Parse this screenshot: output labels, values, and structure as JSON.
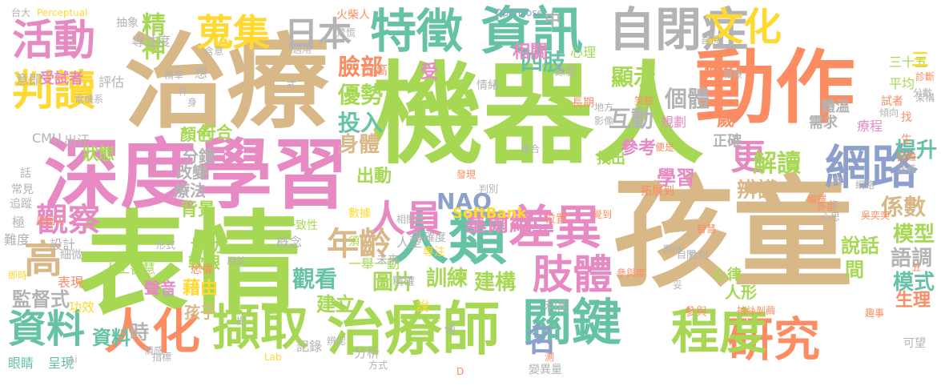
{
  "cloud": {
    "words": [
      {
        "text": "孩童",
        "color": "#d9b888"
      },
      {
        "text": "表情",
        "color": "#a6d854"
      },
      {
        "text": "機器人",
        "color": "#a6d854"
      },
      {
        "text": "治療",
        "color": "#d9b888"
      },
      {
        "text": "動作",
        "color": "#fc8d62"
      },
      {
        "text": "深度學習",
        "color": "#e78ac3"
      },
      {
        "text": "治療師",
        "color": "#a6d854"
      },
      {
        "text": "關鍵",
        "color": "#66c2a5"
      },
      {
        "text": "人類",
        "color": "#66c2a5"
      },
      {
        "text": "特徵",
        "color": "#66c2a5"
      },
      {
        "text": "資訊",
        "color": "#66c2a5"
      },
      {
        "text": "自閉症",
        "color": "#b3b3b3"
      },
      {
        "text": "研究",
        "color": "#fc8d62"
      },
      {
        "text": "程度",
        "color": "#a6d854"
      },
      {
        "text": "擷取",
        "color": "#a6d854"
      },
      {
        "text": "差異",
        "color": "#e78ac3"
      },
      {
        "text": "網路",
        "color": "#8da0cb"
      },
      {
        "text": "肢體",
        "color": "#e78ac3"
      },
      {
        "text": "人化",
        "color": "#fc8d62"
      },
      {
        "text": "活動",
        "color": "#e78ac3"
      },
      {
        "text": "判讀",
        "color": "#ffd92f"
      },
      {
        "text": "蒐集",
        "color": "#ffd92f"
      },
      {
        "text": "文化",
        "color": "#ffd92f"
      },
      {
        "text": "資料",
        "color": "#66c2a5"
      },
      {
        "text": "日本",
        "color": "#b3b3b3"
      },
      {
        "text": "人員",
        "color": "#e78ac3"
      },
      {
        "text": "年齡",
        "color": "#d9b888"
      },
      {
        "text": "更",
        "color": "#e78ac3"
      },
      {
        "text": "高",
        "color": "#d9b888"
      },
      {
        "text": "觀察",
        "color": "#e78ac3"
      },
      {
        "text": "名",
        "color": "#8da0cb"
      },
      {
        "text": "NAO",
        "color": "#8da0cb"
      },
      {
        "text": "塞爾維亞",
        "color": "#e78ac3"
      },
      {
        "text": "精神",
        "color": "#a6d854"
      },
      {
        "text": "優勢",
        "color": "#a6d854"
      },
      {
        "text": "投入",
        "color": "#66c2a5"
      },
      {
        "text": "身體",
        "color": "#d9b888"
      },
      {
        "text": "四肢",
        "color": "#66c2a5"
      },
      {
        "text": "臉部",
        "color": "#fc8d62"
      },
      {
        "text": "顯示",
        "color": "#a6d854"
      },
      {
        "text": "互動",
        "color": "#b3b3b3"
      },
      {
        "text": "個體",
        "color": "#b3b3b3"
      },
      {
        "text": "解讀",
        "color": "#a6d854"
      },
      {
        "text": "辨識",
        "color": "#d9b888"
      },
      {
        "text": "係數",
        "color": "#d9b888"
      },
      {
        "text": "模型",
        "color": "#a6d854"
      },
      {
        "text": "語調",
        "color": "#b3b3b3"
      },
      {
        "text": "模式",
        "color": "#66c2a5"
      },
      {
        "text": "生理",
        "color": "#fc8d62"
      },
      {
        "text": "提升",
        "color": "#66c2a5"
      },
      {
        "text": "觀看",
        "color": "#66c2a5"
      },
      {
        "text": "圖片",
        "color": "#a6d854"
      },
      {
        "text": "訓練",
        "color": "#a6d854"
      },
      {
        "text": "建構",
        "color": "#a6d854"
      },
      {
        "text": "建立",
        "color": "#a6d854"
      },
      {
        "text": "學習",
        "color": "#e78ac3"
      },
      {
        "text": "說話",
        "color": "#a6d854"
      },
      {
        "text": "間",
        "color": "#a6d854"
      },
      {
        "text": "人形",
        "color": "#a6d854"
      },
      {
        "text": "心律",
        "color": "#a6d854"
      },
      {
        "text": "監督式",
        "color": "#b3b3b3"
      },
      {
        "text": "孩子",
        "color": "#d9b888"
      },
      {
        "text": "藉由",
        "color": "#ffd92f"
      },
      {
        "text": "時",
        "color": "#b3b3b3"
      },
      {
        "text": "出動",
        "color": "#a6d854"
      },
      {
        "text": "背景",
        "color": "#a6d854"
      },
      {
        "text": "療法",
        "color": "#b3b3b3"
      },
      {
        "text": "改變",
        "color": "#b3b3b3"
      },
      {
        "text": "分鐘",
        "color": "#b3b3b3"
      },
      {
        "text": "聲音",
        "color": "#e78ac3"
      },
      {
        "text": "軟銀",
        "color": "#a6d854"
      },
      {
        "text": "協助",
        "color": "#a6d854"
      },
      {
        "text": "顏色",
        "color": "#a6d854"
      },
      {
        "text": "符合",
        "color": "#a6d854"
      },
      {
        "text": "狀態",
        "color": "#a6d854"
      },
      {
        "text": "出汗",
        "color": "#b3b3b3"
      },
      {
        "text": "CMU",
        "color": "#b3b3b3"
      },
      {
        "text": "受試者",
        "color": "#e78ac3"
      },
      {
        "text": "意即",
        "color": "#b3b3b3"
      },
      {
        "text": "評估",
        "color": "#b3b3b3"
      },
      {
        "text": "抽象",
        "color": "#b3b3b3"
      },
      {
        "text": "專注度",
        "color": "#b3b3b3"
      },
      {
        "text": "三十五",
        "color": "#a6d854"
      },
      {
        "text": "平均",
        "color": "#a6d854"
      },
      {
        "text": "三",
        "color": "#ffd92f"
      },
      {
        "text": "個案",
        "color": "#fc8d62"
      },
      {
        "text": "相關",
        "color": "#e78ac3"
      },
      {
        "text": "心理",
        "color": "#a6d854"
      },
      {
        "text": "中",
        "color": "#b3b3b3"
      },
      {
        "text": "受",
        "color": "#e78ac3"
      },
      {
        "text": "參考",
        "color": "#e78ac3"
      },
      {
        "text": "找出",
        "color": "#a6d854"
      },
      {
        "text": "正確",
        "color": "#b3b3b3"
      },
      {
        "text": "需求",
        "color": "#b3b3b3"
      },
      {
        "text": "歲",
        "color": "#fc8d62"
      },
      {
        "text": "體溫",
        "color": "#b3b3b3"
      },
      {
        "text": "規劃",
        "color": "#e78ac3"
      },
      {
        "text": "療程",
        "color": "#e78ac3"
      },
      {
        "text": "SoftBank",
        "color": "#ffd92f"
      },
      {
        "text": "人工智慧",
        "color": "#a6d854"
      },
      {
        "text": "一致性",
        "color": "#a6d854"
      },
      {
        "text": "概念",
        "color": "#b3b3b3"
      },
      {
        "text": "人型",
        "color": "#b3b3b3"
      },
      {
        "text": "一舉一動",
        "color": "#a6d854"
      },
      {
        "text": "表現",
        "color": "#fc8d62"
      },
      {
        "text": "功效",
        "color": "#ffd92f"
      },
      {
        "text": "細微",
        "color": "#b3b3b3"
      },
      {
        "text": "設計",
        "color": "#b3b3b3"
      },
      {
        "text": "難度",
        "color": "#b3b3b3"
      },
      {
        "text": "極",
        "color": "#b3b3b3"
      },
      {
        "text": "追蹤",
        "color": "#b3b3b3"
      },
      {
        "text": "常見",
        "color": "#b3b3b3"
      },
      {
        "text": "話",
        "color": "#b3b3b3"
      },
      {
        "text": "資料",
        "color": "#66c2a5"
      },
      {
        "text": "眼睛",
        "color": "#66c2a5"
      },
      {
        "text": "呈現",
        "color": "#66c2a5"
      },
      {
        "text": "記錄",
        "color": "#b3b3b3"
      },
      {
        "text": "分析",
        "color": "#b3b3b3"
      },
      {
        "text": "利用",
        "color": "#b3b3b3"
      },
      {
        "text": "參與",
        "color": "#fc8d62"
      },
      {
        "text": "變異量",
        "color": "#b3b3b3"
      },
      {
        "text": "說",
        "color": "#ffd92f"
      },
      {
        "text": "可望",
        "color": "#b3b3b3"
      },
      {
        "text": "Perceptual",
        "color": "#ffd92f"
      },
      {
        "text": "OpenPose",
        "color": "#8da0cb"
      },
      {
        "text": "台大",
        "color": "#b3b3b3"
      },
      {
        "text": "火柴人",
        "color": "#fc8d62"
      },
      {
        "text": "提高",
        "color": "#fc8d62"
      },
      {
        "text": "想",
        "color": "#b3b3b3"
      },
      {
        "text": "約",
        "color": "#b3b3b3"
      },
      {
        "text": "僅",
        "color": "#b3b3b3"
      },
      {
        "text": "須",
        "color": "#a6d854"
      },
      {
        "text": "找",
        "color": "#fc8d62"
      },
      {
        "text": "生",
        "color": "#fc8d62"
      },
      {
        "text": "試者",
        "color": "#fc8d62"
      },
      {
        "text": "情緒",
        "color": "#b3b3b3"
      },
      {
        "text": "長期",
        "color": "#fc8d62"
      },
      {
        "text": "驚慌",
        "color": "#b3b3b3"
      },
      {
        "text": "錄影",
        "color": "#b3b3b3"
      },
      {
        "text": "數據",
        "color": "#ffd92f"
      },
      {
        "text": "位置",
        "color": "#fc8d62"
      },
      {
        "text": "拓展到",
        "color": "#fc8d62"
      },
      {
        "text": "精確",
        "color": "#b3b3b3"
      },
      {
        "text": "專注",
        "color": "#ffd92f"
      },
      {
        "text": "未來",
        "color": "#b3b3b3"
      },
      {
        "text": "準確度",
        "color": "#b3b3b3"
      },
      {
        "text": "恐懼",
        "color": "#fc8d62"
      },
      {
        "text": "相關性",
        "color": "#b3b3b3"
      },
      {
        "text": "Lab",
        "color": "#ffd92f"
      },
      {
        "text": "辨認",
        "color": "#b3b3b3"
      },
      {
        "text": "Ai",
        "color": "#b3b3b3"
      },
      {
        "text": "情感",
        "color": "#b3b3b3"
      },
      {
        "text": "指標",
        "color": "#b3b3b3"
      },
      {
        "text": "方式",
        "color": "#b3b3b3"
      },
      {
        "text": "周圍人",
        "color": "#fc8d62"
      },
      {
        "text": "即時",
        "color": "#ffd92f"
      },
      {
        "text": "形式",
        "color": "#b3b3b3"
      },
      {
        "text": "吳奕奕",
        "color": "#fc8d62"
      },
      {
        "text": "心思",
        "color": "#b3b3b3"
      },
      {
        "text": "多重",
        "color": "#fc8d62"
      },
      {
        "text": "抽絲剝繭",
        "color": "#fc8d62"
      },
      {
        "text": "編譯",
        "color": "#fc8d62"
      },
      {
        "text": "涵義",
        "color": "#b3b3b3"
      },
      {
        "text": "期待",
        "color": "#b3b3b3"
      },
      {
        "text": "自閉",
        "color": "#b3b3b3"
      },
      {
        "text": "性別",
        "color": "#b3b3b3"
      },
      {
        "text": "覺到",
        "color": "#fc8d62"
      },
      {
        "text": "參與度",
        "color": "#fc8d62"
      },
      {
        "text": "智慧",
        "color": "#fc8d62"
      },
      {
        "text": "困難",
        "color": "#fc8d62"
      },
      {
        "text": "架構",
        "color": "#b3b3b3"
      },
      {
        "text": "傾向",
        "color": "#b3b3b3"
      },
      {
        "text": "診斷",
        "color": "#fc8d62"
      },
      {
        "text": "分數",
        "color": "#b3b3b3"
      },
      {
        "text": "醫療",
        "color": "#b3b3b3"
      },
      {
        "text": "喜悅",
        "color": "#b3b3b3"
      },
      {
        "text": "精準",
        "color": "#b3b3b3"
      },
      {
        "text": "電機系",
        "color": "#b3b3b3"
      },
      {
        "text": "含意",
        "color": "#b3b3b3"
      },
      {
        "text": "用於",
        "color": "#b3b3b3"
      },
      {
        "text": "地方",
        "color": "#b3b3b3"
      },
      {
        "text": "適合",
        "color": "#b3b3b3"
      },
      {
        "text": "判別",
        "color": "#b3b3b3"
      },
      {
        "text": "發現",
        "color": "#fc8d62"
      },
      {
        "text": "便是",
        "color": "#fc8d62"
      },
      {
        "text": "教",
        "color": "#b3b3b3"
      },
      {
        "text": "適用",
        "color": "#b3b3b3"
      },
      {
        "text": "件",
        "color": "#b3b3b3"
      },
      {
        "text": "身",
        "color": "#b3b3b3"
      },
      {
        "text": "式",
        "color": "#b3b3b3"
      },
      {
        "text": "影像",
        "color": "#b3b3b3"
      },
      {
        "text": "笑臉",
        "color": "#fc8d62"
      },
      {
        "text": "趣事",
        "color": "#fc8d62"
      },
      {
        "text": "網路",
        "color": "#b3b3b3"
      },
      {
        "text": "測",
        "color": "#fc8d62"
      },
      {
        "text": "沒",
        "color": "#b3b3b3"
      },
      {
        "text": "五",
        "color": "#fc8d62"
      },
      {
        "text": "D",
        "color": "#fc8d62"
      },
      {
        "text": "妥",
        "color": "#b3b3b3"
      },
      {
        "text": "提",
        "color": "#b3b3b3"
      }
    ]
  }
}
